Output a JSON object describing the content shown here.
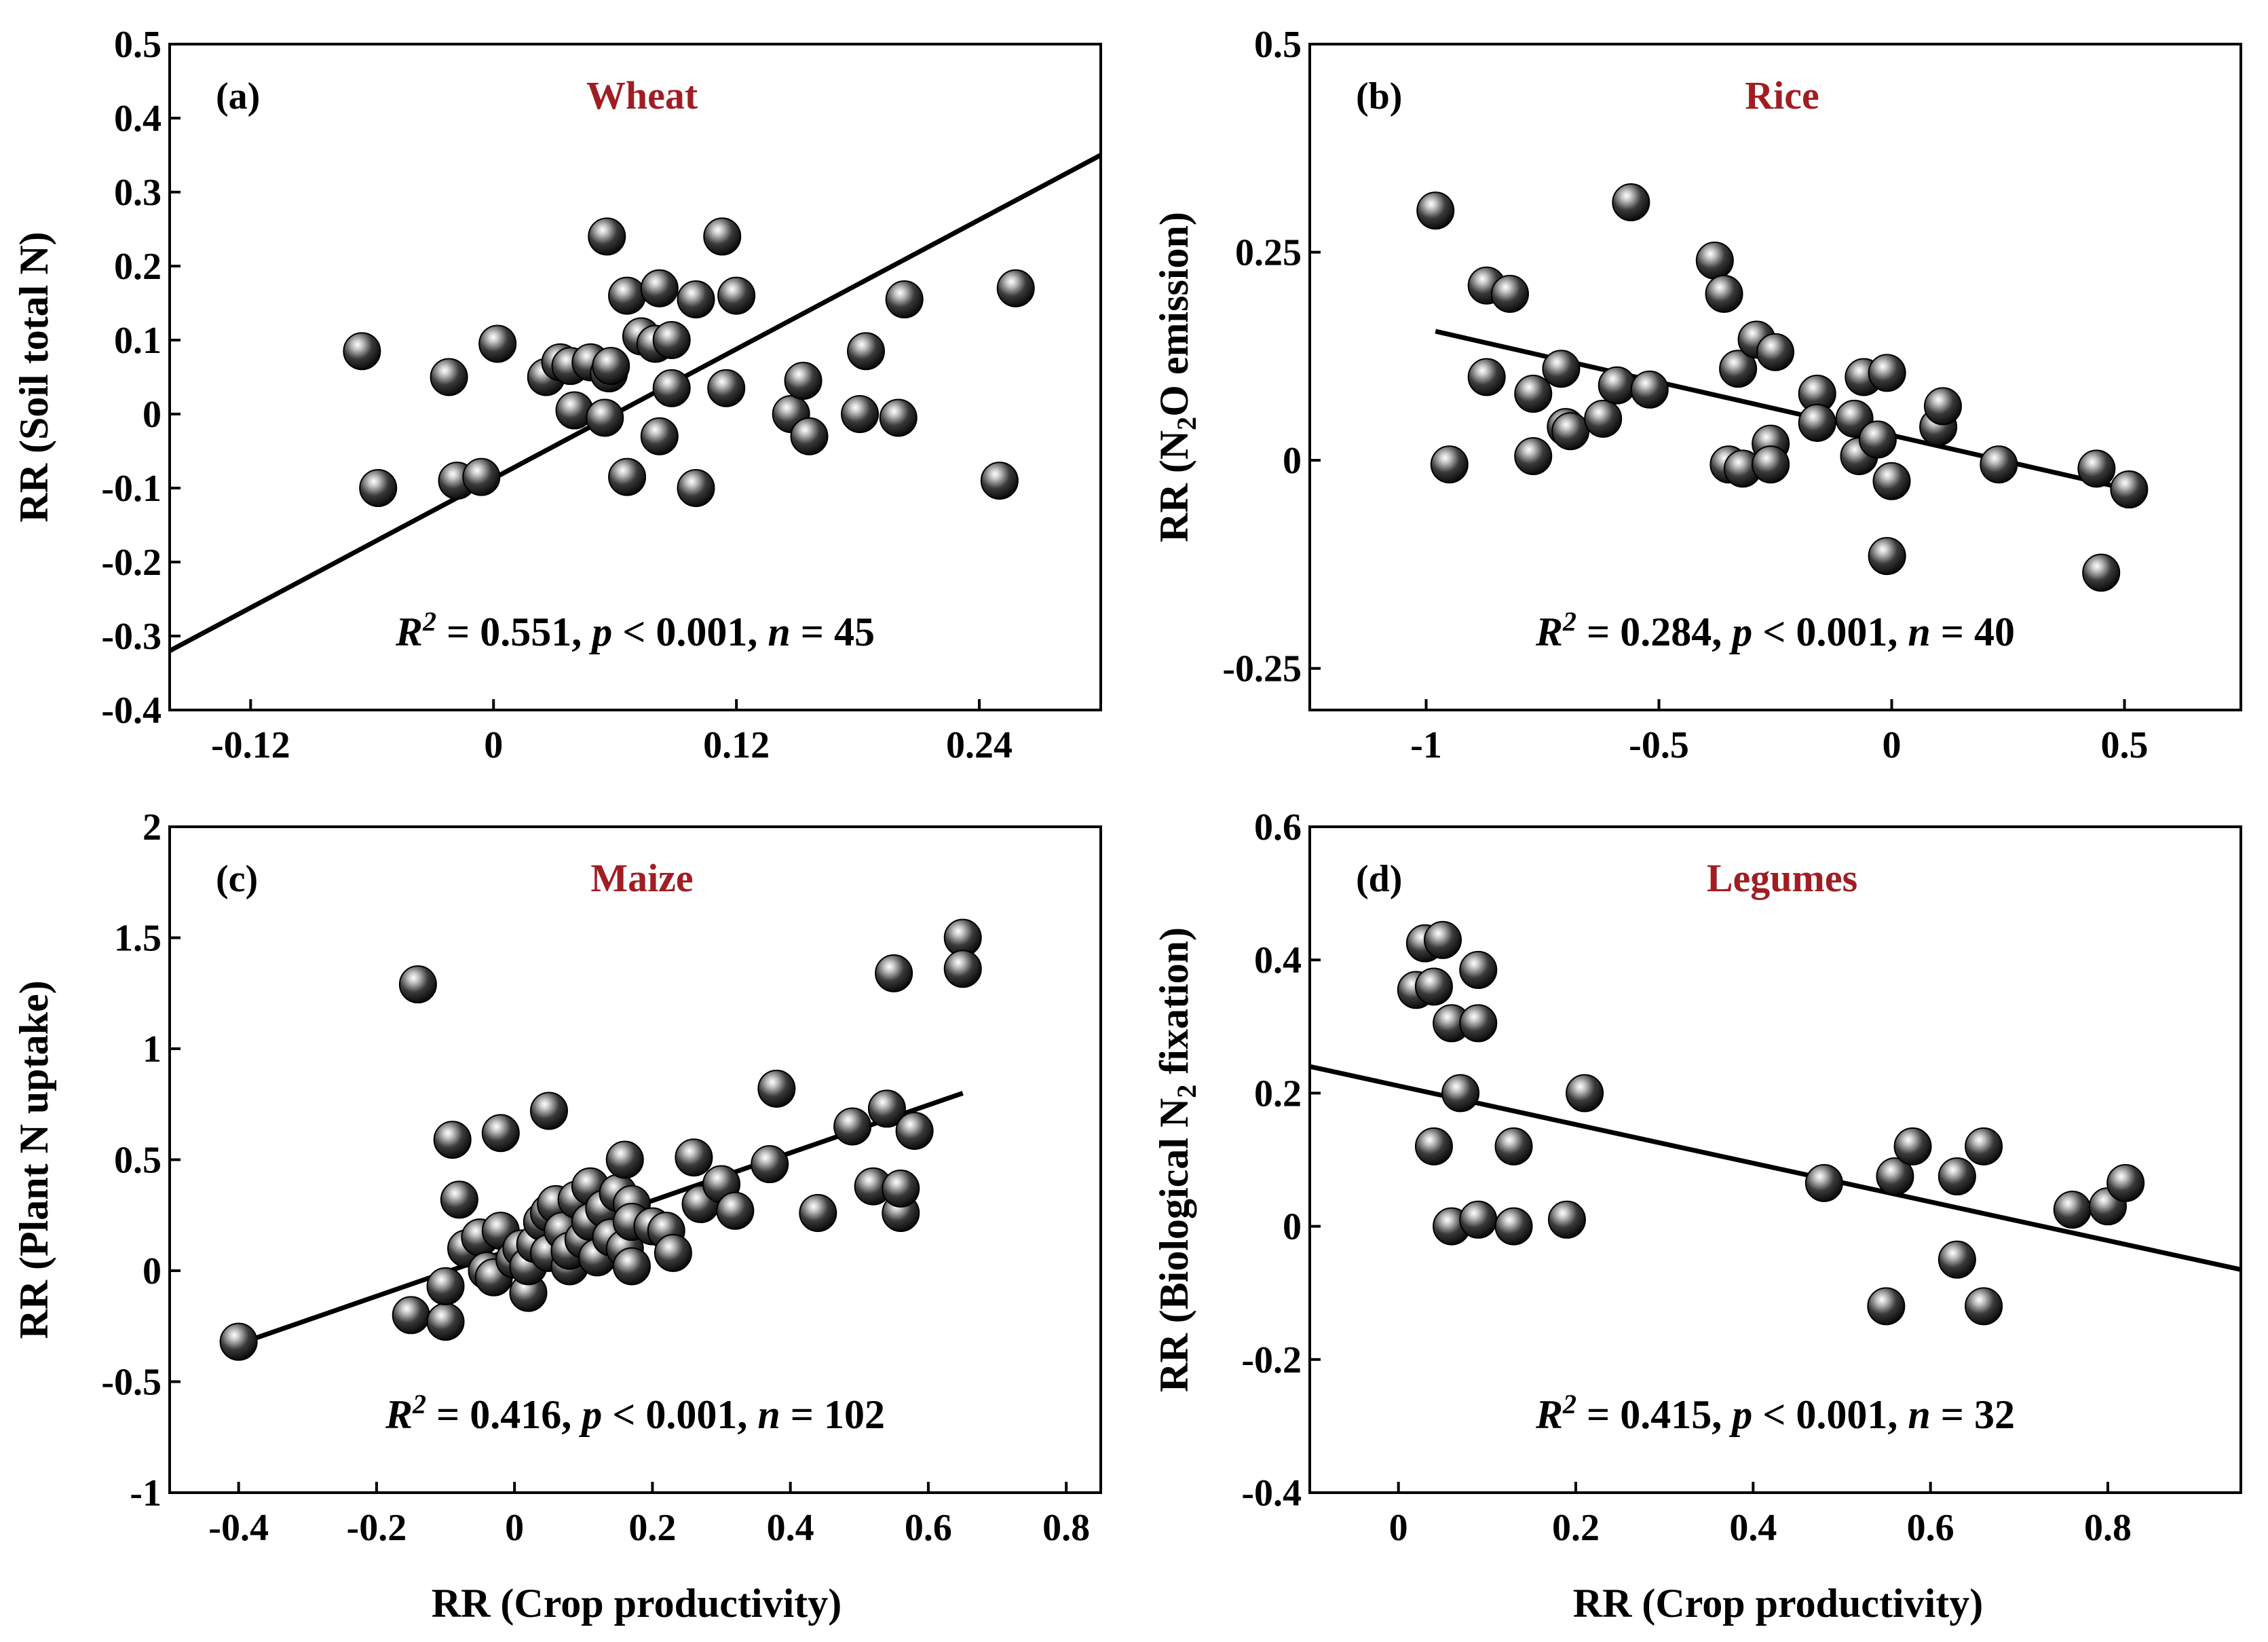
{
  "x_axis_label": "RR (Crop productivity)",
  "colors": {
    "crop_title": "#a01e23",
    "marker": "#111111",
    "line": "#000000"
  },
  "chart_data": [
    {
      "type": "scatter",
      "panel_label": "(a)",
      "title": "Wheat",
      "ylabel": "RR (Soil total N)",
      "xlabel": "",
      "xlim": [
        -0.16,
        0.3
      ],
      "ylim": [
        -0.4,
        0.5
      ],
      "xticks": [
        -0.12,
        0,
        0.12,
        0.24
      ],
      "xtick_labels": [
        "-0.12",
        "0",
        "0.12",
        "0.24"
      ],
      "yticks": [
        -0.4,
        -0.3,
        -0.2,
        -0.1,
        0,
        0.1,
        0.2,
        0.3,
        0.4,
        0.5
      ],
      "ytick_labels": [
        "-0.4",
        "-0.3",
        "-0.2",
        "-0.1",
        "0",
        "0.1",
        "0.2",
        "0.3",
        "0.4",
        "0.5"
      ],
      "stats": {
        "r2_label": "R",
        "r2_exp": "2",
        "r2_value": " = 0.551, ",
        "p_label": "p",
        "p_value": " < 0.001, ",
        "n_label": "n",
        "n_value": " = 45"
      },
      "fit_line": [
        [
          -0.16,
          -0.32
        ],
        [
          0.3,
          0.35
        ]
      ],
      "points": [
        [
          -0.065,
          0.085
        ],
        [
          -0.057,
          -0.1
        ],
        [
          -0.022,
          0.05
        ],
        [
          -0.018,
          -0.09
        ],
        [
          -0.006,
          -0.085
        ],
        [
          0.002,
          0.095
        ],
        [
          0.026,
          0.05
        ],
        [
          0.033,
          0.07
        ],
        [
          0.038,
          0.065
        ],
        [
          0.04,
          0.005
        ],
        [
          0.048,
          0.07
        ],
        [
          0.055,
          -0.005
        ],
        [
          0.057,
          0.055
        ],
        [
          0.058,
          0.065
        ],
        [
          0.056,
          0.24
        ],
        [
          0.066,
          0.16
        ],
        [
          0.066,
          -0.085
        ],
        [
          0.073,
          0.105
        ],
        [
          0.08,
          0.095
        ],
        [
          0.082,
          0.17
        ],
        [
          0.082,
          -0.03
        ],
        [
          0.088,
          0.1
        ],
        [
          0.088,
          0.035
        ],
        [
          0.1,
          0.155
        ],
        [
          0.1,
          -0.1
        ],
        [
          0.113,
          0.24
        ],
        [
          0.115,
          0.035
        ],
        [
          0.12,
          0.16
        ],
        [
          0.147,
          0.0
        ],
        [
          0.153,
          0.045
        ],
        [
          0.156,
          -0.03
        ],
        [
          0.181,
          0.0
        ],
        [
          0.184,
          0.085
        ],
        [
          0.2,
          -0.005
        ],
        [
          0.203,
          0.155
        ],
        [
          0.25,
          -0.09
        ],
        [
          0.258,
          0.17
        ]
      ]
    },
    {
      "type": "scatter",
      "panel_label": "(b)",
      "title": "Rice",
      "ylabel": "RR (N2O emission)",
      "ylabel_parts": [
        "RR (N",
        "2",
        "O emission)"
      ],
      "xlabel": "",
      "xlim": [
        -1.25,
        0.75
      ],
      "ylim": [
        -0.3,
        0.5
      ],
      "xticks": [
        -1,
        -0.5,
        0,
        0.5
      ],
      "xtick_labels": [
        "-1",
        "-0.5",
        "0",
        "0.5"
      ],
      "yticks": [
        -0.25,
        0,
        0.25,
        0.5
      ],
      "ytick_labels": [
        "-0.25",
        "0",
        "0.25",
        "0.5"
      ],
      "stats": {
        "r2_label": "R",
        "r2_exp": "2",
        "r2_value": " = 0.284, ",
        "p_label": "p",
        "p_value": " < 0.001, ",
        "n_label": "n",
        "n_value": " = 40"
      },
      "fit_line": [
        [
          -0.98,
          0.155
        ],
        [
          0.51,
          -0.035
        ]
      ],
      "points": [
        [
          -0.98,
          0.3
        ],
        [
          -0.95,
          -0.005
        ],
        [
          -0.87,
          0.21
        ],
        [
          -0.87,
          0.1
        ],
        [
          -0.82,
          0.2
        ],
        [
          -0.77,
          0.08
        ],
        [
          -0.77,
          0.005
        ],
        [
          -0.71,
          0.11
        ],
        [
          -0.7,
          0.04
        ],
        [
          -0.69,
          0.035
        ],
        [
          -0.62,
          0.05
        ],
        [
          -0.59,
          0.09
        ],
        [
          -0.56,
          0.31
        ],
        [
          -0.52,
          0.085
        ],
        [
          -0.38,
          0.24
        ],
        [
          -0.36,
          0.2
        ],
        [
          -0.35,
          -0.005
        ],
        [
          -0.33,
          0.11
        ],
        [
          -0.32,
          -0.01
        ],
        [
          -0.29,
          0.145
        ],
        [
          -0.25,
          0.13
        ],
        [
          -0.26,
          0.02
        ],
        [
          -0.26,
          -0.005
        ],
        [
          -0.16,
          0.08
        ],
        [
          -0.16,
          0.045
        ],
        [
          -0.08,
          0.05
        ],
        [
          -0.07,
          0.005
        ],
        [
          -0.06,
          0.1
        ],
        [
          -0.03,
          0.025
        ],
        [
          -0.01,
          0.105
        ],
        [
          -0.01,
          -0.115
        ],
        [
          0.0,
          -0.025
        ],
        [
          0.1,
          0.04
        ],
        [
          0.11,
          0.065
        ],
        [
          0.23,
          -0.005
        ],
        [
          0.44,
          -0.01
        ],
        [
          0.45,
          -0.135
        ],
        [
          0.51,
          -0.035
        ]
      ]
    },
    {
      "type": "scatter",
      "panel_label": "(c)",
      "title": "Maize",
      "ylabel": "RR (Plant N uptake)",
      "xlabel": "RR (Crop productivity)",
      "xlim": [
        -0.5,
        0.85
      ],
      "ylim": [
        -1,
        2
      ],
      "xticks": [
        -0.4,
        -0.2,
        0,
        0.2,
        0.4,
        0.6,
        0.8
      ],
      "xtick_labels": [
        "-0.4",
        "-0.2",
        "0",
        "0.2",
        "0.4",
        "0.6",
        "0.8"
      ],
      "yticks": [
        -1,
        -0.5,
        0,
        0.5,
        1,
        1.5,
        2
      ],
      "ytick_labels": [
        "-1",
        "-0.5",
        "0",
        "0.5",
        "1",
        "1.5",
        "2"
      ],
      "stats": {
        "r2_label": "R",
        "r2_exp": "2",
        "r2_value": " = 0.416, ",
        "p_label": "p",
        "p_value": " < 0.001, ",
        "n_label": "n",
        "n_value": " = 102"
      },
      "fit_line": [
        [
          -0.4,
          -0.33
        ],
        [
          0.65,
          0.8
        ]
      ],
      "points": [
        [
          -0.4,
          -0.32
        ],
        [
          -0.15,
          -0.2
        ],
        [
          -0.1,
          -0.23
        ],
        [
          -0.1,
          -0.07
        ],
        [
          -0.14,
          1.29
        ],
        [
          -0.09,
          0.59
        ],
        [
          -0.02,
          0.62
        ],
        [
          0.05,
          0.72
        ],
        [
          -0.08,
          0.32
        ],
        [
          -0.07,
          0.1
        ],
        [
          -0.05,
          0.15
        ],
        [
          -0.04,
          0.0
        ],
        [
          -0.03,
          -0.03
        ],
        [
          -0.02,
          0.18
        ],
        [
          0.0,
          0.05
        ],
        [
          0.01,
          0.1
        ],
        [
          0.02,
          -0.1
        ],
        [
          0.02,
          0.02
        ],
        [
          0.03,
          0.12
        ],
        [
          0.04,
          0.22
        ],
        [
          0.05,
          0.26
        ],
        [
          0.05,
          0.08
        ],
        [
          0.06,
          0.3
        ],
        [
          0.07,
          0.18
        ],
        [
          0.08,
          0.02
        ],
        [
          0.08,
          0.09
        ],
        [
          0.09,
          0.32
        ],
        [
          0.1,
          0.14
        ],
        [
          0.11,
          0.38
        ],
        [
          0.11,
          0.22
        ],
        [
          0.12,
          0.06
        ],
        [
          0.13,
          0.28
        ],
        [
          0.14,
          0.15
        ],
        [
          0.15,
          0.35
        ],
        [
          0.16,
          0.5
        ],
        [
          0.16,
          0.1
        ],
        [
          0.17,
          0.3
        ],
        [
          0.17,
          0.22
        ],
        [
          0.17,
          0.02
        ],
        [
          0.2,
          0.2
        ],
        [
          0.22,
          0.18
        ],
        [
          0.23,
          0.08
        ],
        [
          0.26,
          0.51
        ],
        [
          0.27,
          0.3
        ],
        [
          0.3,
          0.39
        ],
        [
          0.32,
          0.27
        ],
        [
          0.37,
          0.48
        ],
        [
          0.38,
          0.82
        ],
        [
          0.44,
          0.26
        ],
        [
          0.49,
          0.65
        ],
        [
          0.52,
          0.38
        ],
        [
          0.54,
          0.73
        ],
        [
          0.55,
          1.34
        ],
        [
          0.56,
          0.26
        ],
        [
          0.56,
          0.37
        ],
        [
          0.58,
          0.63
        ],
        [
          0.65,
          1.5
        ],
        [
          0.65,
          1.36
        ]
      ]
    },
    {
      "type": "scatter",
      "panel_label": "(d)",
      "title": "Legumes",
      "ylabel": "RR (Biological N2 fixation)",
      "ylabel_parts": [
        "RR (Biological N",
        "2",
        " fixation)"
      ],
      "xlabel": "RR (Crop productivity)",
      "xlim": [
        -0.1,
        0.95
      ],
      "ylim": [
        -0.4,
        0.6
      ],
      "xticks": [
        0,
        0.2,
        0.4,
        0.6,
        0.8
      ],
      "xtick_labels": [
        "0",
        "0.2",
        "0.4",
        "0.6",
        "0.8"
      ],
      "yticks": [
        -0.4,
        -0.2,
        0,
        0.2,
        0.4,
        0.6
      ],
      "ytick_labels": [
        "-0.4",
        "-0.2",
        "0",
        "0.2",
        "0.4",
        "0.6"
      ],
      "stats": {
        "r2_label": "R",
        "r2_exp": "2",
        "r2_value": " = 0.415, ",
        "p_label": "p",
        "p_value": " < 0.001, ",
        "n_label": "n",
        "n_value": " = 32"
      },
      "fit_line": [
        [
          -0.1,
          0.24
        ],
        [
          0.95,
          -0.065
        ]
      ],
      "points": [
        [
          0.02,
          0.355
        ],
        [
          0.03,
          0.425
        ],
        [
          0.04,
          0.36
        ],
        [
          0.05,
          0.43
        ],
        [
          0.04,
          0.12
        ],
        [
          0.06,
          0.305
        ],
        [
          0.06,
          0.0
        ],
        [
          0.07,
          0.2
        ],
        [
          0.09,
          0.385
        ],
        [
          0.09,
          0.305
        ],
        [
          0.09,
          0.01
        ],
        [
          0.13,
          0.0
        ],
        [
          0.13,
          0.12
        ],
        [
          0.19,
          0.01
        ],
        [
          0.21,
          0.2
        ],
        [
          0.48,
          0.065
        ],
        [
          0.55,
          -0.12
        ],
        [
          0.56,
          0.075
        ],
        [
          0.58,
          0.12
        ],
        [
          0.63,
          0.075
        ],
        [
          0.63,
          -0.05
        ],
        [
          0.66,
          0.12
        ],
        [
          0.66,
          -0.12
        ],
        [
          0.76,
          0.025
        ],
        [
          0.8,
          0.03
        ],
        [
          0.82,
          0.065
        ]
      ]
    }
  ]
}
